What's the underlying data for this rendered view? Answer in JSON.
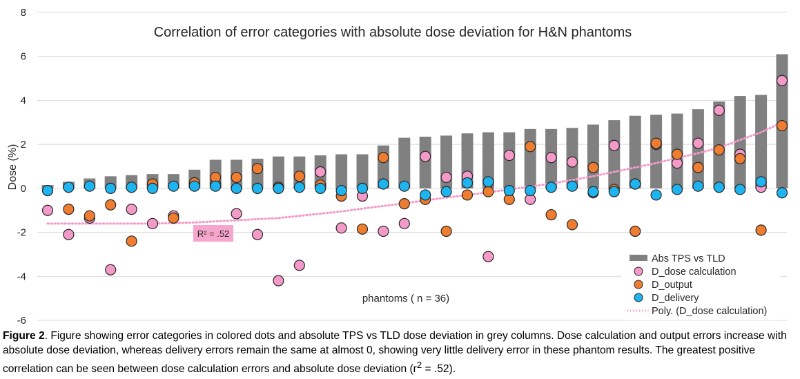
{
  "chart_data": {
    "type": "bar",
    "title": "Correlation of error categories with absolute dose deviation for H&N phantoms",
    "ylabel": "Dose (%)",
    "xlabel": "phantoms ( n = 36)",
    "ylim": [
      -6,
      8
    ],
    "yticks": [
      -6,
      -4,
      -2,
      0,
      2,
      4,
      6,
      8
    ],
    "grid": true,
    "legend_position": "bottom-right",
    "colors": {
      "bars": "#808080",
      "dose_calc": "#f49ac9",
      "output": "#ee7d31",
      "delivery": "#1eb4ef",
      "trendline": "#f49ac9",
      "r2_box": "#f6a6cc"
    },
    "bars": {
      "name": "Abs TPS vs TLD",
      "values": [
        0.15,
        0.3,
        0.45,
        0.55,
        0.6,
        0.65,
        0.65,
        0.85,
        1.3,
        1.3,
        1.35,
        1.45,
        1.45,
        1.5,
        1.55,
        1.55,
        1.95,
        2.3,
        2.35,
        2.4,
        2.5,
        2.55,
        2.55,
        2.7,
        2.7,
        2.75,
        2.9,
        3.1,
        3.3,
        3.35,
        3.4,
        3.6,
        3.95,
        4.2,
        4.25,
        6.1
      ]
    },
    "series": [
      {
        "name": "D_dose calculation",
        "values": [
          -1.0,
          -2.1,
          -1.35,
          -3.7,
          -0.95,
          -1.6,
          -1.25,
          0.2,
          0.2,
          -1.15,
          -2.1,
          -4.2,
          -3.5,
          0.75,
          -1.8,
          -0.35,
          -1.95,
          -1.6,
          1.45,
          0.5,
          0.55,
          -3.1,
          1.5,
          -0.5,
          1.4,
          1.2,
          -0.2,
          1.95,
          0.2,
          2.0,
          1.15,
          2.05,
          3.55,
          1.55,
          0.05,
          4.9
        ]
      },
      {
        "name": "D_output",
        "values": [
          -0.1,
          -0.95,
          -1.25,
          -0.75,
          -2.4,
          0.2,
          -1.35,
          0.25,
          0.5,
          0.5,
          0.9,
          0.05,
          0.55,
          0.15,
          -0.35,
          -1.85,
          1.4,
          -0.7,
          -0.5,
          -1.95,
          -0.3,
          -0.15,
          -0.5,
          1.9,
          -1.2,
          -1.65,
          0.95,
          -0.05,
          -1.95,
          2.05,
          1.55,
          0.95,
          1.75,
          1.35,
          -1.9,
          2.85
        ]
      },
      {
        "name": "D_delivery",
        "values": [
          -0.1,
          0.05,
          0.1,
          0.0,
          0.05,
          0.0,
          0.1,
          0.1,
          0.1,
          0.0,
          0.0,
          0.0,
          0.05,
          0.0,
          -0.1,
          0.0,
          0.2,
          0.1,
          -0.3,
          -0.15,
          0.25,
          0.3,
          -0.1,
          -0.1,
          0.05,
          0.1,
          -0.15,
          -0.15,
          0.2,
          -0.3,
          -0.05,
          0.1,
          0.05,
          -0.05,
          0.3,
          -0.2
        ]
      }
    ],
    "trendline": {
      "name": "Poly. (D_dose calculation)",
      "values": [
        -1.6,
        -1.6,
        -1.6,
        -1.6,
        -1.6,
        -1.6,
        -1.58,
        -1.55,
        -1.5,
        -1.45,
        -1.4,
        -1.35,
        -1.25,
        -1.15,
        -1.05,
        -0.92,
        -0.8,
        -0.68,
        -0.55,
        -0.42,
        -0.3,
        -0.18,
        -0.05,
        0.08,
        0.22,
        0.38,
        0.55,
        0.75,
        0.95,
        1.15,
        1.38,
        1.6,
        1.85,
        2.2,
        2.55,
        3.0
      ],
      "r2_label": "R² = .52"
    }
  },
  "caption": {
    "bold": "Figure 2",
    "text": ". Figure showing error categories in colored dots and absolute TPS vs TLD dose deviation in grey columns. Dose calculation and output errors increase with absolute dose deviation, whereas delivery errors remain the same at almost 0, showing very little delivery error in these phantom results. The greatest positive correlation can be seen between dose calculation errors and absolute dose deviation (r",
    "sup": "2",
    "tail": " = .52)."
  }
}
